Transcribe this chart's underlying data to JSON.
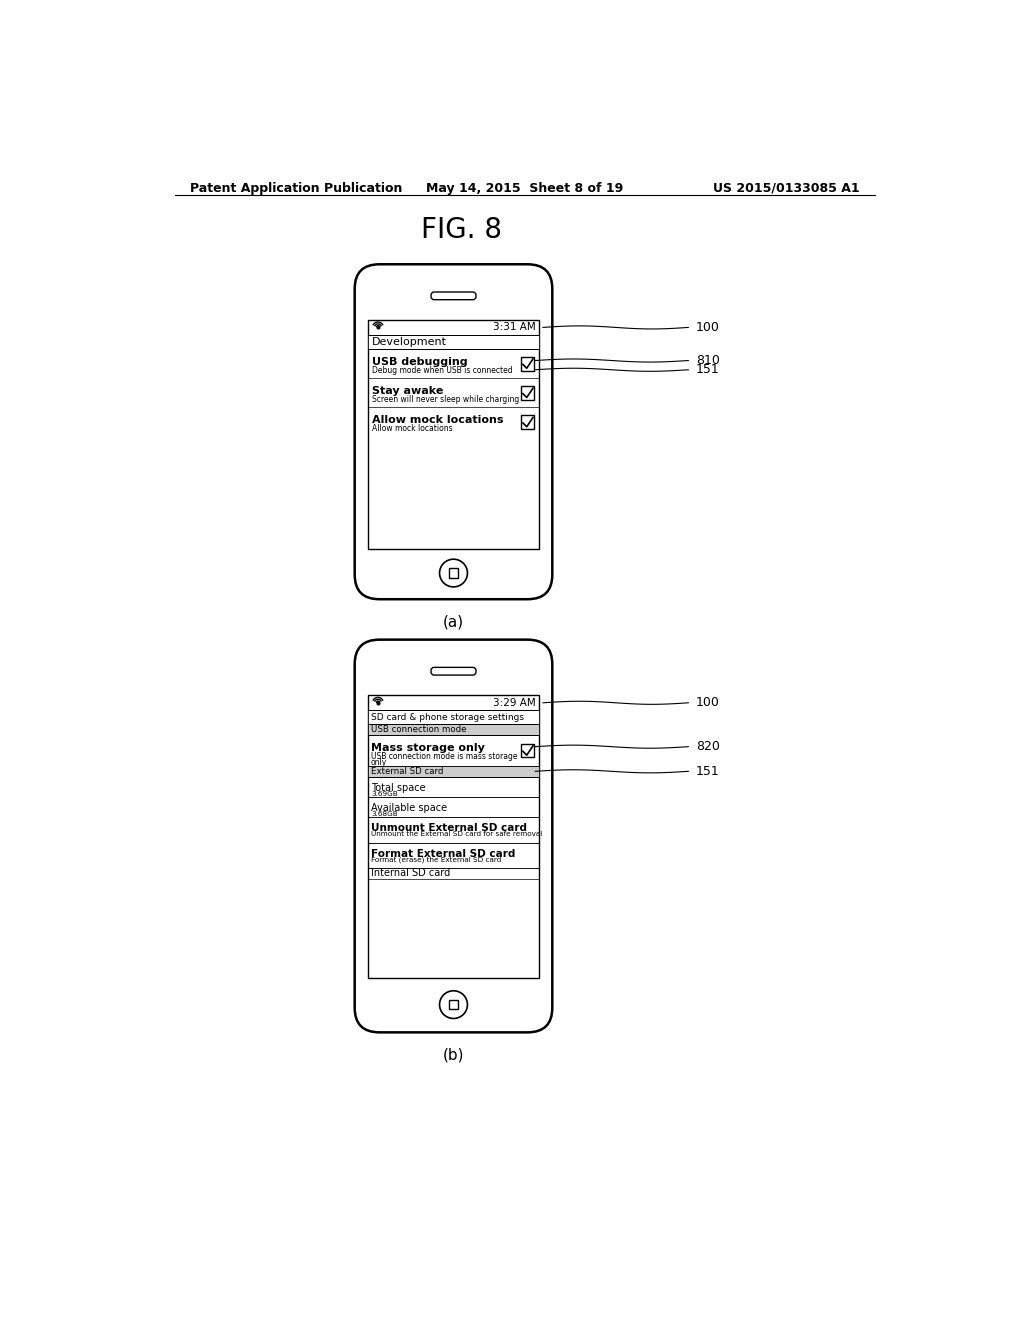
{
  "title": "FIG. 8",
  "header_left": "Patent Application Publication",
  "header_mid": "May 14, 2015  Sheet 8 of 19",
  "header_right": "US 2015/0133085 A1",
  "phone_a": {
    "label": "(a)",
    "time": "3:31 AM",
    "screen_title": "Development",
    "items": [
      {
        "title": "USB debugging",
        "subtitle": "Debug mode when USB is connected",
        "checked": true
      },
      {
        "title": "Stay awake",
        "subtitle": "Screen will never sleep while charging",
        "checked": true
      },
      {
        "title": "Allow mock locations",
        "subtitle": "Allow mock locations",
        "checked": true
      }
    ],
    "ref_labels": [
      "100",
      "810",
      "151"
    ]
  },
  "phone_b": {
    "label": "(b)",
    "time": "3:29 AM",
    "screen_title": "SD card & phone storage settings",
    "section1": "USB connection mode",
    "mass_storage": {
      "title": "Mass storage only",
      "subtitle1": "USB connection mode is mass storage",
      "subtitle2": "only",
      "checked": true
    },
    "section2": "External SD card",
    "items2": [
      {
        "title": "Total space",
        "subtitle": "3.69GB"
      },
      {
        "title": "Available space",
        "subtitle": "3.68GB"
      },
      {
        "title": "Unmount External SD card",
        "subtitle": "Unmount the External SD card for safe removal"
      },
      {
        "title": "Format External SD card",
        "subtitle": "Format (erase) the External SD card"
      },
      {
        "title": "Internal SD card",
        "subtitle": ""
      }
    ],
    "ref_labels": [
      "100",
      "820",
      "151"
    ]
  }
}
